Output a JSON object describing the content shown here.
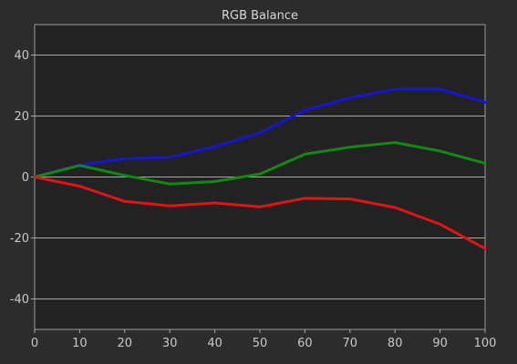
{
  "chart_data": {
    "type": "line",
    "title": "RGB Balance",
    "xlabel": "",
    "ylabel": "",
    "x": [
      0,
      10,
      20,
      30,
      40,
      50,
      60,
      70,
      80,
      90,
      100
    ],
    "xlim": [
      0,
      100
    ],
    "ylim": [
      -50,
      50
    ],
    "xticks": [
      0,
      10,
      20,
      30,
      40,
      50,
      60,
      70,
      80,
      90,
      100
    ],
    "yticks": [
      -40,
      -20,
      0,
      20,
      40
    ],
    "grid": "horizontal",
    "legend": "none",
    "series": [
      {
        "color": "#1515d6",
        "values": [
          0,
          4,
          6,
          6.5,
          10,
          14.5,
          22,
          26,
          28.8,
          28.8,
          24.5
        ]
      },
      {
        "color": "#118a11",
        "values": [
          0,
          3.8,
          0.5,
          -2.3,
          -1.5,
          1,
          7.5,
          9.8,
          11.3,
          8.5,
          4.5
        ]
      },
      {
        "color": "#e01414",
        "values": [
          0,
          -3,
          -8,
          -9.5,
          -8.5,
          -9.8,
          -7,
          -7.2,
          -10,
          -15.5,
          -23.5
        ]
      }
    ]
  }
}
